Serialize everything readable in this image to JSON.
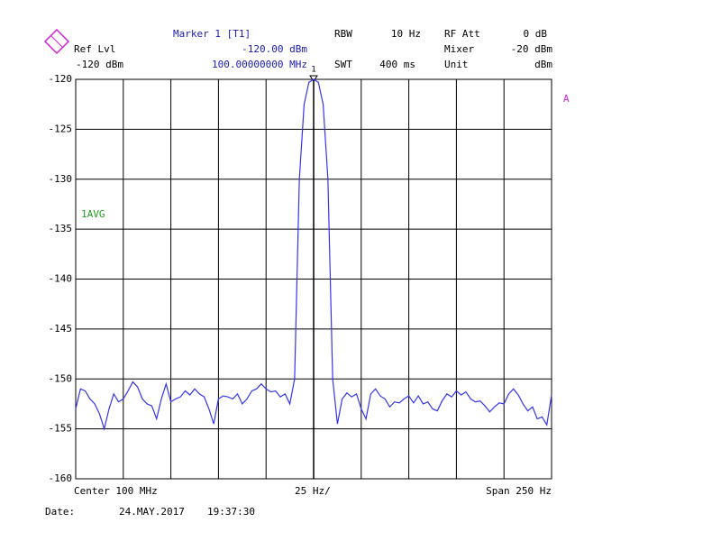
{
  "chart_data": {
    "type": "line",
    "color": "#3535f0",
    "grid": true,
    "ylim": [
      -160,
      -120
    ],
    "yticks": [
      -120,
      -125,
      -130,
      -135,
      -140,
      -145,
      -150,
      -155,
      -160
    ],
    "values": [
      -153,
      -151,
      -151.2,
      -152,
      -152.5,
      -153.5,
      -155,
      -153,
      -151.5,
      -152.3,
      -152,
      -151.2,
      -150.3,
      -150.8,
      -152,
      -152.5,
      -152.7,
      -154,
      -152,
      -150.5,
      -152.3,
      -152,
      -151.8,
      -151.2,
      -151.6,
      -151,
      -151.5,
      -151.8,
      -153,
      -154.5,
      -152,
      -151.7,
      -151.8,
      -152,
      -151.5,
      -152.5,
      -152,
      -151.2,
      -151,
      -150.5,
      -151,
      -151.3,
      -151.2,
      -151.8,
      -151.5,
      -152.5,
      -150,
      -130,
      -122.5,
      -120.3,
      -120,
      -120.3,
      -122.5,
      -130,
      -150,
      -154.5,
      -152,
      -151.4,
      -151.8,
      -151.5,
      -153,
      -154,
      -151.5,
      -151,
      -151.7,
      -152,
      -152.8,
      -152.3,
      -152.4,
      -152,
      -151.7,
      -152.4,
      -151.7,
      -152.5,
      -152.3,
      -153,
      -153.2,
      -152.2,
      -151.5,
      -151.8,
      -151.2,
      -151.6,
      -151.3,
      -152,
      -152.3,
      -152.2,
      -152.7,
      -153.3,
      -152.8,
      -152.4,
      -152.5,
      -151.5,
      -151,
      -151.6,
      -152.5,
      -153.2,
      -152.8,
      -154,
      -153.8,
      -154.6,
      -151.6
    ],
    "header": {
      "marker_title": "Marker 1 [T1]",
      "marker_level": "-120.00 dBm",
      "marker_freq": "100.00000000 MHz",
      "marker_number": "1",
      "ref_lvl_label": "Ref Lvl",
      "ref_lvl": "-120 dBm",
      "rbw_label": "RBW",
      "rbw": "10 Hz",
      "swt_label": "SWT",
      "swt": "400 ms",
      "rf_att_label": "RF Att",
      "rf_att": "0 dB",
      "mixer_label": "Mixer",
      "mixer": "-20 dBm",
      "unit_label": "Unit",
      "unit": "dBm"
    },
    "trace_label": "A",
    "trace_mode": "1AVG",
    "footer": {
      "center": "Center 100 MHz",
      "per_div": "25 Hz/",
      "span": "Span 250 Hz",
      "date_label": "Date:",
      "date": "24.MAY.2017",
      "time": "19:37:30"
    }
  }
}
